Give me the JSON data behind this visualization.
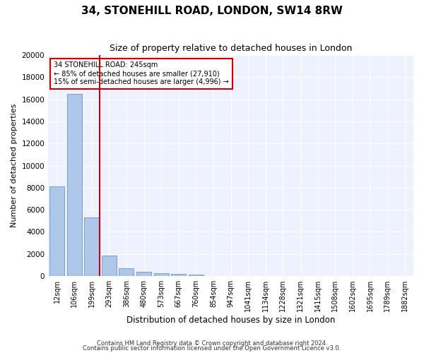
{
  "title": "34, STONEHILL ROAD, LONDON, SW14 8RW",
  "subtitle": "Size of property relative to detached houses in London",
  "xlabel": "Distribution of detached houses by size in London",
  "ylabel": "Number of detached properties",
  "categories": [
    "12sqm",
    "106sqm",
    "199sqm",
    "293sqm",
    "386sqm",
    "480sqm",
    "573sqm",
    "667sqm",
    "760sqm",
    "854sqm",
    "947sqm",
    "1041sqm",
    "1134sqm",
    "1228sqm",
    "1321sqm",
    "1415sqm",
    "1508sqm",
    "1602sqm",
    "1695sqm",
    "1789sqm",
    "1882sqm"
  ],
  "values": [
    8100,
    16500,
    5300,
    1850,
    700,
    370,
    280,
    200,
    160,
    0,
    0,
    0,
    0,
    0,
    0,
    0,
    0,
    0,
    0,
    0,
    0
  ],
  "bar_color": "#aec6e8",
  "bar_edge_color": "#5588bb",
  "vline_color": "#cc0000",
  "vline_x_index": 2.45,
  "annotation_text": "34 STONEHILL ROAD: 245sqm\n← 85% of detached houses are smaller (27,910)\n15% of semi-detached houses are larger (4,996) →",
  "annotation_box_color": "#cc0000",
  "ylim": [
    0,
    20000
  ],
  "yticks": [
    0,
    2000,
    4000,
    6000,
    8000,
    10000,
    12000,
    14000,
    16000,
    18000,
    20000
  ],
  "bg_color": "#eef2ff",
  "footer1": "Contains HM Land Registry data © Crown copyright and database right 2024.",
  "footer2": "Contains public sector information licensed under the Open Government Licence v3.0.",
  "title_fontsize": 11,
  "subtitle_fontsize": 9,
  "xlabel_fontsize": 8.5,
  "ylabel_fontsize": 8,
  "tick_fontsize": 7,
  "annotation_fontsize": 7,
  "footer_fontsize": 6
}
